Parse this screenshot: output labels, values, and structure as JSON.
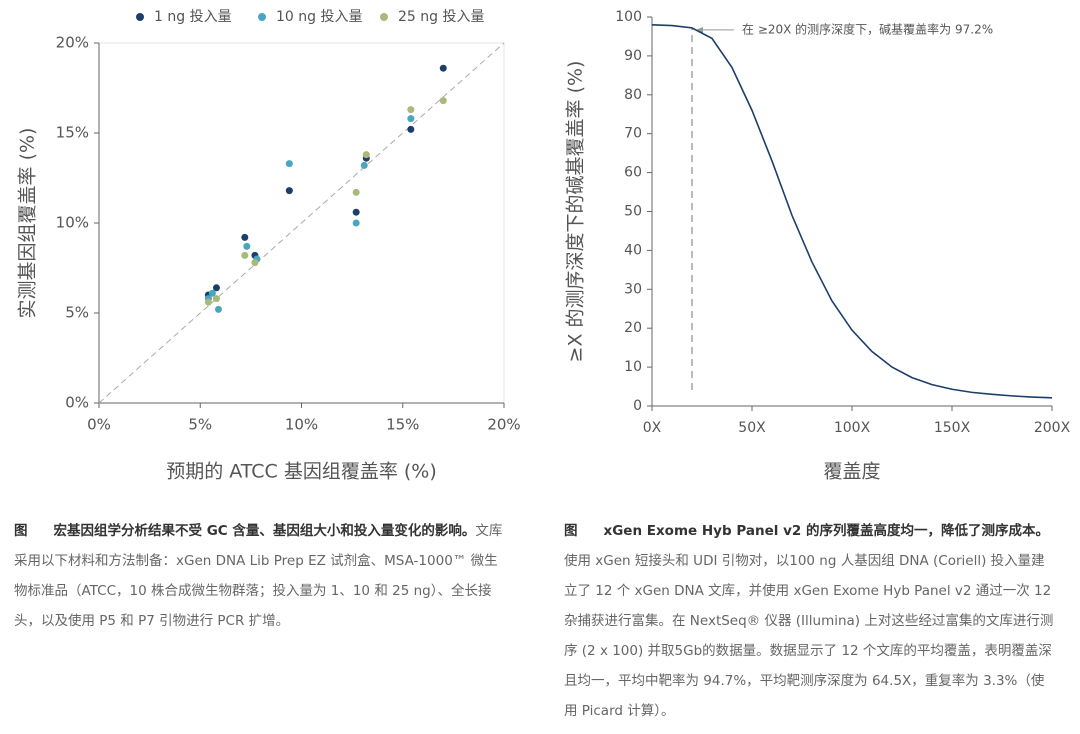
{
  "chart_data": [
    {
      "type": "scatter",
      "x_label": "预期的 ATCC 基因组覆盖率 (%)",
      "y_label": "实测基因组覆盖率 (%)",
      "xlim": [
        0,
        20
      ],
      "ylim": [
        0,
        20
      ],
      "xticks": [
        {
          "value": 0,
          "label": "0%"
        },
        {
          "value": 5,
          "label": "5%"
        },
        {
          "value": 10,
          "label": "10%"
        },
        {
          "value": 15,
          "label": "15%"
        },
        {
          "value": 20,
          "label": "20%"
        }
      ],
      "yticks": [
        {
          "value": 0,
          "label": "0%"
        },
        {
          "value": 5,
          "label": "5%"
        },
        {
          "value": 10,
          "label": "10%"
        },
        {
          "value": 15,
          "label": "15%"
        },
        {
          "value": 20,
          "label": "20%"
        }
      ],
      "diagonal": true,
      "series": [
        {
          "name": "1 ng 投入量",
          "color": "#1d3e6b",
          "x": [
            5.4,
            5.8,
            7.2,
            7.7,
            9.4,
            12.7,
            13.2,
            15.4,
            17.0
          ],
          "values": [
            6.0,
            6.4,
            9.2,
            8.2,
            11.8,
            10.6,
            13.6,
            15.2,
            18.6
          ]
        },
        {
          "name": "10 ng 投入量",
          "color": "#4aa6be",
          "x": [
            5.4,
            5.6,
            5.9,
            7.3,
            7.8,
            9.4,
            12.7,
            13.1,
            15.4
          ],
          "values": [
            5.8,
            6.1,
            5.2,
            8.7,
            8.0,
            13.3,
            10.0,
            13.2,
            15.8
          ]
        },
        {
          "name": "25 ng 投入量",
          "color": "#a9b97a",
          "x": [
            5.4,
            5.8,
            7.2,
            7.7,
            12.7,
            13.2,
            15.4,
            17.0
          ],
          "values": [
            5.6,
            5.8,
            8.2,
            7.8,
            11.7,
            13.8,
            16.3,
            16.8
          ]
        }
      ]
    },
    {
      "type": "line",
      "x_label": "覆盖度",
      "y_label": "≥X 的测序深度下的碱基覆盖率 (%)",
      "xlim": [
        0,
        200
      ],
      "ylim": [
        0,
        100
      ],
      "xticks": [
        {
          "value": 0,
          "label": "0X"
        },
        {
          "value": 50,
          "label": "50X"
        },
        {
          "value": 100,
          "label": "100X"
        },
        {
          "value": 150,
          "label": "150X"
        },
        {
          "value": 200,
          "label": "200X"
        }
      ],
      "yticks": [
        0,
        10,
        20,
        30,
        40,
        50,
        60,
        70,
        80,
        90,
        100
      ],
      "series": [
        {
          "color": "#1d3e6b",
          "x": [
            0,
            10,
            20,
            30,
            40,
            50,
            60,
            70,
            80,
            90,
            100,
            110,
            120,
            130,
            140,
            150,
            160,
            170,
            180,
            190,
            200
          ],
          "values": [
            98,
            97.8,
            97.2,
            94.5,
            87,
            76,
            63,
            49,
            37,
            27,
            19.5,
            14,
            10,
            7.3,
            5.5,
            4.3,
            3.5,
            3.0,
            2.6,
            2.3,
            2.1
          ]
        }
      ],
      "annotation": {
        "x": 20,
        "y": 97.2,
        "text": "在 ≥20X 的测序深度下，碱基覆盖率为 97.2%"
      }
    }
  ],
  "captions": [
    {
      "label": "图",
      "title": "宏基因组学分析结果不受 GC 含量、基因组大小和投入量变化的影响。",
      "body": "文库采用以下材料和方法制备：xGen DNA Lib Prep EZ 试剂盒、MSA-1000™ 微生物标准品（ATCC，10 株合成微生物群落；投入量为 1、10 和 25 ng）、全长接头，以及使用 P5 和 P7 引物进行 PCR 扩增。"
    },
    {
      "label": "图",
      "title": "xGen Exome Hyb Panel v2 的序列覆盖高度均一，降低了测序成本。",
      "body": "使用 xGen 短接头和 UDI 引物对，以100 ng 人基因组 DNA (Coriell) 投入量建立了 12 个 xGen DNA 文库，并使用 xGen Exome Hyb Panel v2 通过一次 12 杂捕获进行富集。在 NextSeq® 仪器 (Illumina) 上对这些经过富集的文库进行测序 (2 x 100) 并取5Gb的数据量。数据显示了 12 个文库的平均覆盖，表明覆盖深且均一，平均中靶率为 94.7%，平均靶测序深度为 64.5X，重复率为 3.3%（使用 Picard 计算）。"
    }
  ]
}
